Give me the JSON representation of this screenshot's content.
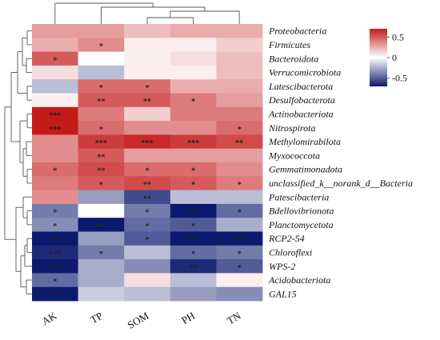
{
  "chart_data": {
    "type": "heatmap",
    "title": "",
    "xlabel": "",
    "ylabel": "",
    "columns": [
      "AK",
      "TP",
      "SOM",
      "PH",
      "TN"
    ],
    "rows": [
      "Proteobacteria",
      "Firmicutes",
      "Bacteroidota",
      "Verrucomicrobiota",
      "Latescibacterota",
      "Desulfobacterota",
      "Actinobacteriota",
      "Nitrospirota",
      "Methylomirabilota",
      "Myxococcota",
      "Gemmatimonadota",
      "unclassified_k__norank_d__Bacteria",
      "Patescibacteria",
      "Bdellovibrionota",
      "Planctomycetota",
      "RCP2-54",
      "Chloroflexi",
      "WPS-2",
      "Acidobacteriota",
      "GAL15"
    ],
    "values": [
      [
        0.3,
        0.3,
        0.2,
        0.25,
        0.25
      ],
      [
        0.25,
        0.35,
        0.05,
        0.05,
        0.15
      ],
      [
        0.5,
        0.0,
        0.05,
        0.1,
        0.2
      ],
      [
        0.1,
        -0.2,
        0.05,
        0.05,
        0.2
      ],
      [
        -0.2,
        0.45,
        0.45,
        0.25,
        0.25
      ],
      [
        0.05,
        0.5,
        0.5,
        0.4,
        0.3
      ],
      [
        0.7,
        0.4,
        0.15,
        0.4,
        0.4
      ],
      [
        0.7,
        0.45,
        0.35,
        0.35,
        0.45
      ],
      [
        0.35,
        0.6,
        0.65,
        0.6,
        0.55
      ],
      [
        0.35,
        0.5,
        0.3,
        0.3,
        0.3
      ],
      [
        0.45,
        0.55,
        0.45,
        0.45,
        0.35
      ],
      [
        0.4,
        0.5,
        0.55,
        0.5,
        0.4
      ],
      [
        0.35,
        -0.3,
        -0.55,
        -0.2,
        -0.2
      ],
      [
        -0.4,
        0.0,
        -0.4,
        -0.7,
        -0.45
      ],
      [
        -0.35,
        -0.75,
        -0.45,
        -0.5,
        -0.25
      ],
      [
        -0.75,
        -0.3,
        -0.5,
        -0.75,
        -0.75
      ],
      [
        -0.65,
        -0.4,
        -0.2,
        -0.45,
        -0.4
      ],
      [
        -0.75,
        -0.25,
        -0.35,
        -0.65,
        -0.5
      ],
      [
        -0.45,
        -0.25,
        0.1,
        -0.2,
        0.05
      ],
      [
        -0.7,
        -0.15,
        -0.2,
        -0.3,
        -0.35
      ]
    ],
    "significance": [
      [
        "",
        "",
        "",
        "",
        ""
      ],
      [
        "",
        "*",
        "",
        "",
        ""
      ],
      [
        "*",
        "",
        "",
        "",
        ""
      ],
      [
        "",
        "",
        "",
        "",
        ""
      ],
      [
        "",
        "*",
        "*",
        "",
        ""
      ],
      [
        "",
        "**",
        "**",
        "*",
        ""
      ],
      [
        "***",
        "",
        "",
        "",
        ""
      ],
      [
        "***",
        "*",
        "",
        "",
        "*"
      ],
      [
        "",
        "***",
        "***",
        "***",
        "**"
      ],
      [
        "",
        "**",
        "",
        "",
        ""
      ],
      [
        "*",
        "**",
        "*",
        "*",
        ""
      ],
      [
        "",
        "*",
        "**",
        "*",
        "*"
      ],
      [
        "",
        "",
        "**",
        "",
        ""
      ],
      [
        "*",
        "",
        "*",
        "***",
        "*"
      ],
      [
        "*",
        "***",
        "*",
        "*",
        ""
      ],
      [
        "***",
        "",
        "*",
        "***",
        "***"
      ],
      [
        "***",
        "*",
        "",
        "*",
        "*"
      ],
      [
        "***",
        "",
        "",
        "**",
        "*"
      ],
      [
        "*",
        "",
        "",
        "",
        ""
      ],
      [
        "***",
        "",
        "",
        "",
        ""
      ]
    ],
    "color_scale": {
      "min": -0.7,
      "max": 0.7,
      "low_color": "#0c1a6e",
      "mid_color": "#ffffff",
      "high_color": "#c41a1a",
      "ticks": [
        0.5,
        0,
        -0.5
      ],
      "tick_labels": [
        "0.5",
        "0",
        "-0.5"
      ]
    },
    "legend_position": "right",
    "dendrograms": [
      "top (columns)",
      "left (rows)"
    ]
  }
}
